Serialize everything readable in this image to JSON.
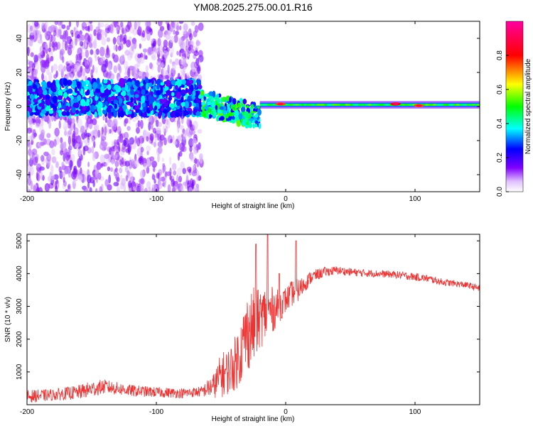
{
  "chart_data": [
    {
      "type": "heatmap",
      "title": "YM08.2025.275.00.01.R16",
      "xlabel": "Height of straight line (km)",
      "ylabel": "Frequency (Hz)",
      "xlim": [
        -200,
        150
      ],
      "ylim": [
        -50,
        50
      ],
      "xticks": [
        -200,
        -100,
        0,
        100
      ],
      "xtick_labels": [
        "-200",
        "-100",
        "0",
        "100"
      ],
      "yticks": [
        -40,
        -20,
        0,
        20,
        40
      ],
      "ytick_labels": [
        "-40",
        "-20",
        "0",
        "20",
        "40"
      ],
      "colorbar": {
        "label": "Normalized spectral amplitude",
        "range": [
          0,
          1
        ],
        "ticks": [
          0.0,
          0.2,
          0.4,
          0.6,
          0.8
        ],
        "tick_labels": [
          "0.0",
          "0.2",
          "0.4",
          "0.6",
          "0.8"
        ],
        "colors": [
          "#ffffff",
          "#8000ff",
          "#0000ff",
          "#00ffff",
          "#00ff00",
          "#ffff00",
          "#ff0000",
          "#ff00a0"
        ]
      },
      "regions": [
        {
          "name": "noise",
          "x_range": [
            -200,
            -65
          ],
          "freq_center": 5,
          "freq_spread": 50,
          "amplitude": 0.25
        },
        {
          "name": "transition",
          "x_range": [
            -65,
            -20
          ],
          "freq_center": 0,
          "freq_spread": 12,
          "amplitude": 0.45
        },
        {
          "name": "signal-band",
          "x_range": [
            -20,
            150
          ],
          "freq_center": 1,
          "freq_spread": 3,
          "amplitude": 0.55
        }
      ],
      "peaks": [
        {
          "x": -4,
          "freq": 1.5,
          "amplitude": 0.9
        },
        {
          "x": 85,
          "freq": 1.5,
          "amplitude": 0.95
        },
        {
          "x": 103,
          "freq": 0.5,
          "amplitude": 0.9
        }
      ]
    },
    {
      "type": "line",
      "xlabel": "Height of straight line (km)",
      "ylabel": "SNR (10 * v/v)",
      "xlim": [
        -200,
        150
      ],
      "ylim": [
        0,
        5200
      ],
      "xticks": [
        -200,
        -100,
        0,
        100
      ],
      "xtick_labels": [
        "-200",
        "-100",
        "0",
        "100"
      ],
      "yticks": [
        1000,
        2000,
        3000,
        4000,
        5000
      ],
      "ytick_labels": [
        "1000",
        "2000",
        "3000",
        "4000",
        "5000"
      ],
      "color": "#ee3333",
      "series": [
        {
          "name": "SNR",
          "x": [
            -200,
            -180,
            -160,
            -150,
            -140,
            -120,
            -100,
            -80,
            -65,
            -55,
            -50,
            -45,
            -40,
            -35,
            -30,
            -25,
            -20,
            -15,
            -10,
            -5,
            0,
            5,
            10,
            15,
            20,
            30,
            40,
            50,
            60,
            70,
            80,
            90,
            100,
            110,
            120,
            130,
            140,
            150
          ],
          "y": [
            250,
            300,
            380,
            480,
            550,
            430,
            380,
            350,
            400,
            600,
            900,
            1000,
            1200,
            1600,
            2200,
            2400,
            2600,
            2800,
            2900,
            3000,
            3200,
            3400,
            3500,
            3700,
            3900,
            4050,
            4100,
            4050,
            4020,
            4000,
            3980,
            3950,
            3900,
            3850,
            3750,
            3700,
            3650,
            3550
          ],
          "noise": [
            200,
            180,
            220,
            250,
            220,
            180,
            160,
            150,
            160,
            400,
            700,
            700,
            800,
            1000,
            1200,
            1200,
            900,
            900,
            700,
            500,
            400,
            400,
            350,
            250,
            200,
            150,
            130,
            120,
            120,
            110,
            110,
            120,
            120,
            110,
            110,
            100,
            100,
            100
          ]
        }
      ],
      "spikes": [
        {
          "x": -23,
          "y": 4900
        },
        {
          "x": -14,
          "y": 5200
        },
        {
          "x": -5,
          "y": 4000
        },
        {
          "x": 8,
          "y": 5000
        }
      ]
    }
  ]
}
